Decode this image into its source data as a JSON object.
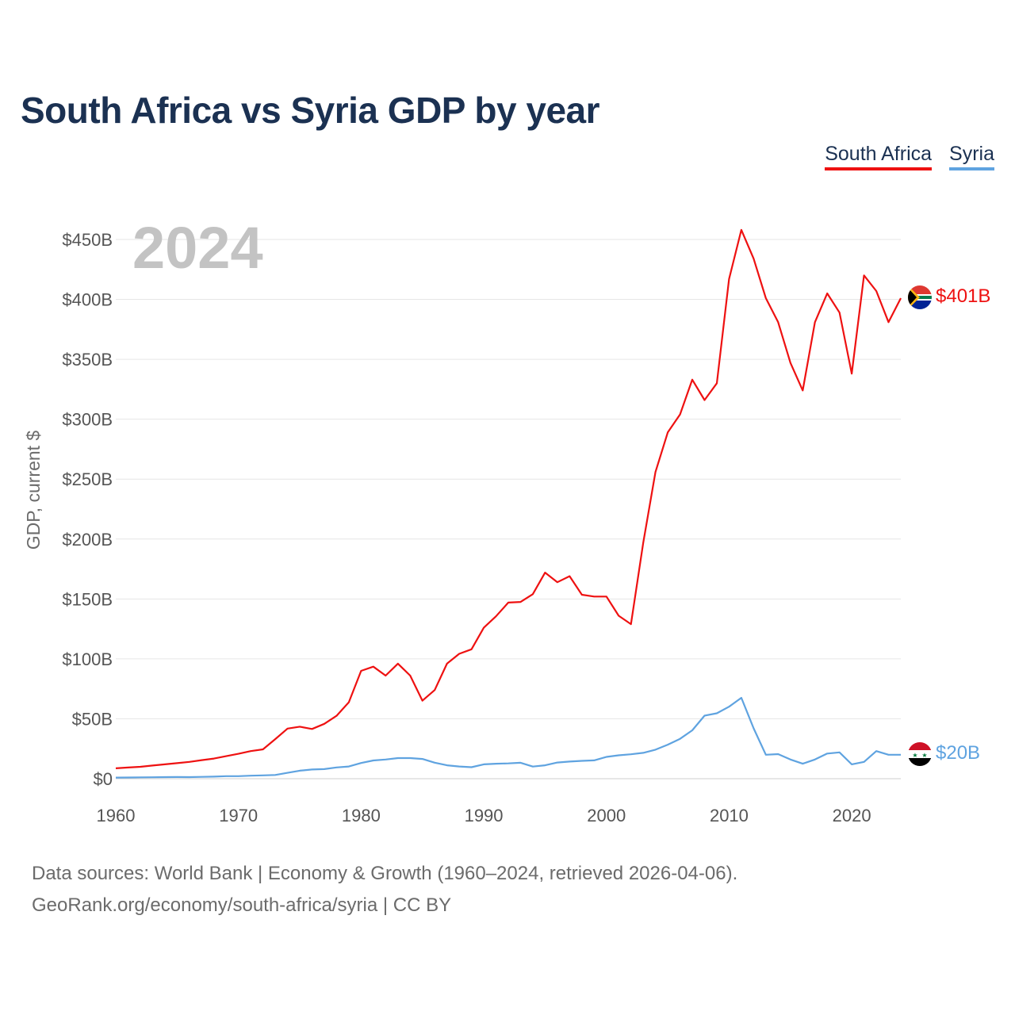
{
  "title": "South Africa vs Syria GDP by year",
  "legend": [
    {
      "label": "South Africa",
      "color": "#ee1111"
    },
    {
      "label": "Syria",
      "color": "#5fa3e0"
    }
  ],
  "year_watermark": "2024",
  "end_labels": {
    "south_africa": "$401B",
    "syria": "$20B"
  },
  "source": {
    "line1": "Data sources: World Bank | Economy & Growth (1960–2024, retrieved 2026-04-06).",
    "line2": "GeoRank.org/economy/south-africa/syria | CC BY"
  },
  "chart_data": {
    "type": "line",
    "title": "South Africa vs Syria GDP by year",
    "xlabel": "",
    "ylabel": "GDP, current $",
    "xlim": [
      1960,
      2024
    ],
    "ylim": [
      0,
      450
    ],
    "x_ticks": [
      1960,
      1970,
      1980,
      1990,
      2000,
      2010,
      2020
    ],
    "x_tick_labels": [
      "1960",
      "1970",
      "1980",
      "1990",
      "2000",
      "2010",
      "2020"
    ],
    "y_ticks": [
      0,
      50,
      100,
      150,
      200,
      250,
      300,
      350,
      400,
      450
    ],
    "y_tick_labels": [
      "$0",
      "$50B",
      "$100B",
      "$150B",
      "$200B",
      "$250B",
      "$300B",
      "$350B",
      "$400B",
      "$450B"
    ],
    "grid": true,
    "legend_position": "top-right",
    "x": [
      1960,
      1961,
      1962,
      1963,
      1964,
      1965,
      1966,
      1967,
      1968,
      1969,
      1970,
      1971,
      1972,
      1973,
      1974,
      1975,
      1976,
      1977,
      1978,
      1979,
      1980,
      1981,
      1982,
      1983,
      1984,
      1985,
      1986,
      1987,
      1988,
      1989,
      1990,
      1991,
      1992,
      1993,
      1994,
      1995,
      1996,
      1997,
      1998,
      1999,
      2000,
      2001,
      2002,
      2003,
      2004,
      2005,
      2006,
      2007,
      2008,
      2009,
      2010,
      2011,
      2012,
      2013,
      2014,
      2015,
      2016,
      2017,
      2018,
      2019,
      2020,
      2021,
      2022,
      2023,
      2024
    ],
    "series": [
      {
        "name": "South Africa",
        "color": "#ee1111",
        "values": [
          8.7,
          9.3,
          9.9,
          11,
          12,
          13,
          14,
          15.5,
          16.8,
          18.8,
          20.8,
          23,
          24.5,
          33,
          41.8,
          43.4,
          41.5,
          45.8,
          52.5,
          63.8,
          90,
          93.5,
          86,
          96,
          86,
          65.1,
          74,
          96,
          104.2,
          108,
          126,
          135.5,
          147,
          147.5,
          154,
          172,
          164,
          169,
          153.5,
          152,
          152,
          136,
          129,
          197,
          256,
          289,
          304,
          333,
          316,
          330,
          417,
          458,
          434,
          401,
          381,
          347,
          324,
          381,
          405,
          389,
          338,
          420,
          407,
          381,
          401
        ]
      },
      {
        "name": "Syria",
        "color": "#5fa3e0",
        "values": [
          0.9,
          1,
          1.1,
          1.2,
          1.3,
          1.4,
          1.3,
          1.5,
          1.7,
          2.1,
          2.1,
          2.5,
          2.8,
          3.1,
          4.9,
          6.7,
          7.7,
          8,
          9.4,
          10.2,
          13.1,
          15.2,
          16,
          17.2,
          17.2,
          16.5,
          13.4,
          11.2,
          10.2,
          9.6,
          12,
          12.5,
          12.8,
          13.3,
          10.1,
          11.2,
          13.5,
          14.3,
          14.9,
          15.3,
          18.2,
          19.5,
          20.4,
          21.6,
          24.2,
          28.4,
          33.3,
          40.4,
          52.6,
          54.6,
          60.1,
          67.5,
          42,
          20,
          20.5,
          16,
          12.5,
          16,
          21,
          22,
          12,
          14,
          23,
          20,
          20
        ]
      }
    ]
  }
}
